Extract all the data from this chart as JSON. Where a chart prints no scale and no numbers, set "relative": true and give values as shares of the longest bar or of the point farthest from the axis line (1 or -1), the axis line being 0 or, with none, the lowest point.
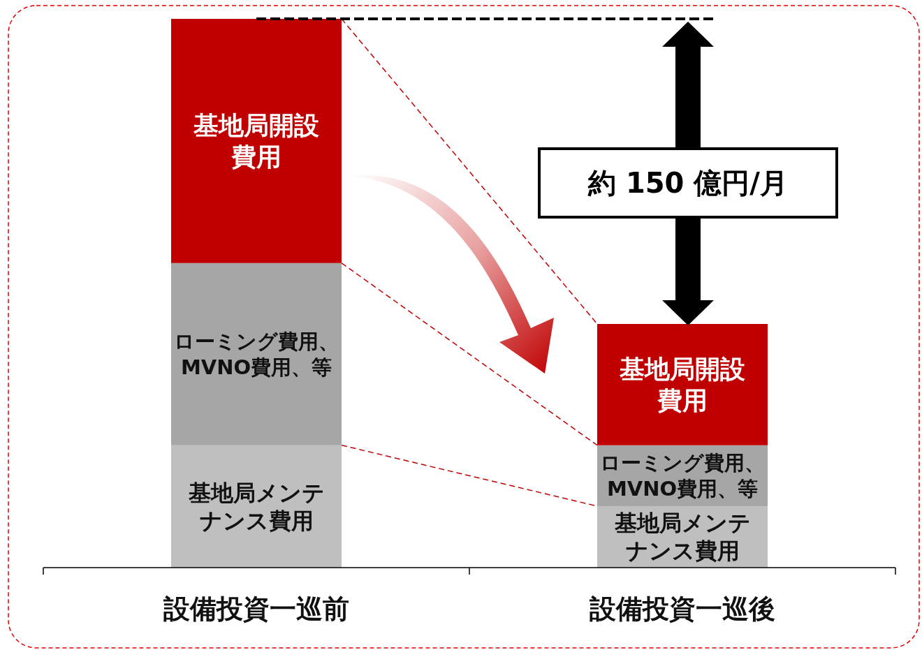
{
  "chart_data": {
    "type": "bar",
    "stacked": true,
    "relative": true,
    "categories": [
      "設備投資一巡前",
      "設備投資一巡後"
    ],
    "series": [
      {
        "name": "基地局メンテナンス費用",
        "color": "#bfbfbf",
        "values": [
          0.223,
          0.112
        ]
      },
      {
        "name": "ローミング費用、MVNO費用、等",
        "color": "#a6a6a6",
        "values": [
          0.332,
          0.111
        ]
      },
      {
        "name": "基地局開設費用",
        "color": "#c00000",
        "values": [
          0.445,
          0.221
        ]
      }
    ],
    "annotations": [
      "約 150 億円/月"
    ],
    "ref_lines": [
      {
        "axis": "y",
        "value": 1,
        "color": "#000000",
        "line_style": "dashed"
      }
    ]
  }
}
